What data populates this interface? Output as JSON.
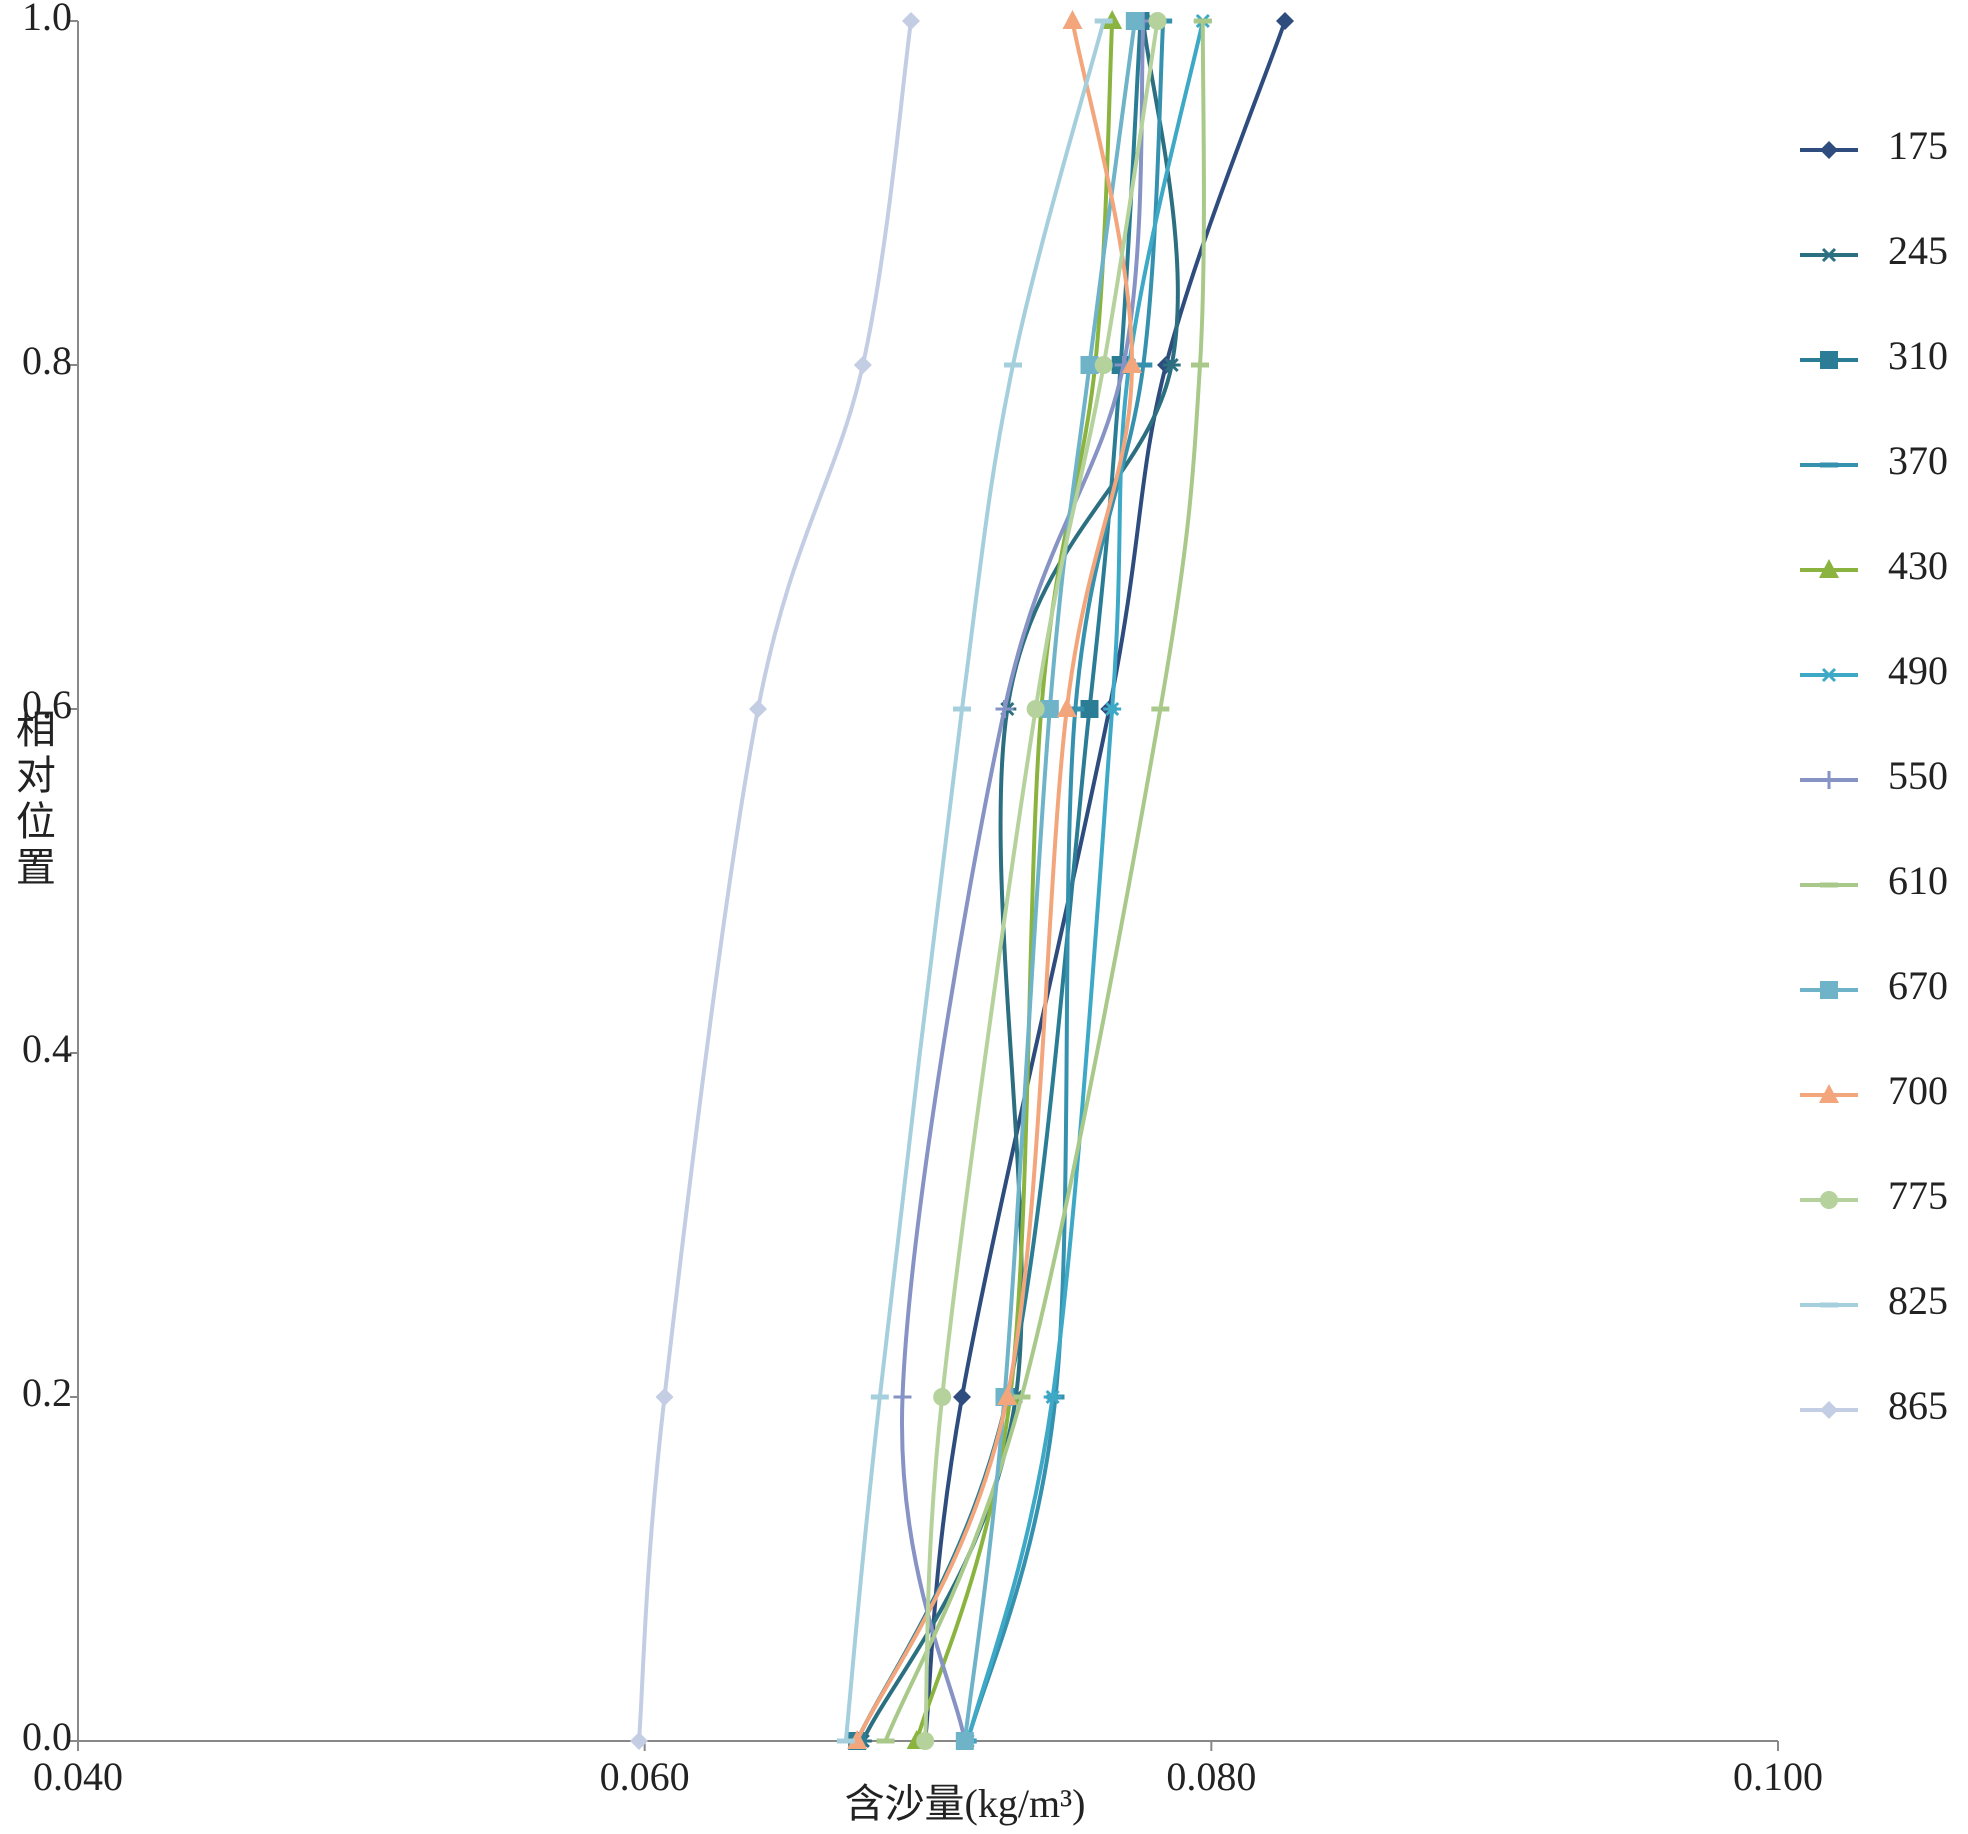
{
  "chart_data": {
    "type": "line",
    "x_label": "含沙量(kg/m³)",
    "y_label": "相对位置",
    "y": [
      0,
      0.2,
      0.6,
      0.8,
      1.0
    ],
    "xlim": [
      0.04,
      0.1
    ],
    "xticks": [
      {
        "value": 0.04,
        "label": "0.040"
      },
      {
        "value": 0.06,
        "label": "0.060"
      },
      {
        "value": 0.08,
        "label": "0.080"
      },
      {
        "value": 0.1,
        "label": "0.100"
      }
    ],
    "ylim": [
      0,
      1
    ],
    "yticks": [
      {
        "value": 0,
        "label": "0.0"
      },
      0.2,
      0.4,
      0.6,
      0.8,
      {
        "value": 1,
        "label": "1.0"
      }
    ],
    "legend": "right",
    "series": [
      {
        "name": "175",
        "color": "#2e4d7e",
        "marker": "diamond",
        "values": [
          0.0699,
          0.0712,
          0.0764,
          0.0784,
          0.0826
        ]
      },
      {
        "name": "245",
        "color": "#2b6f80",
        "marker": "star",
        "values": [
          0.0677,
          0.0731,
          0.0728,
          0.0786,
          0.0776
        ]
      },
      {
        "name": "310",
        "color": "#2a7d95",
        "marker": "square",
        "values": [
          0.0675,
          0.0728,
          0.0757,
          0.0768,
          0.0775
        ]
      },
      {
        "name": "370",
        "color": "#3591ad",
        "marker": "dash",
        "values": [
          0.0714,
          0.0745,
          0.0752,
          0.0776,
          0.0783
        ]
      },
      {
        "name": "430",
        "color": "#8ab43f",
        "marker": "triangle",
        "values": [
          0.0696,
          0.0729,
          0.074,
          0.0759,
          0.0765
        ]
      },
      {
        "name": "490",
        "color": "#3ea9c6",
        "marker": "star",
        "values": [
          0.0714,
          0.0744,
          0.0765,
          0.0771,
          0.0797
        ]
      },
      {
        "name": "550",
        "color": "#8693c4",
        "marker": "plus",
        "values": [
          0.0713,
          0.0691,
          0.0727,
          0.0769,
          0.0776
        ]
      },
      {
        "name": "610",
        "color": "#a9c98a",
        "marker": "dash",
        "values": [
          0.0685,
          0.0733,
          0.0782,
          0.0796,
          0.0797
        ]
      },
      {
        "name": "670",
        "color": "#6fb3c9",
        "marker": "square",
        "values": [
          0.0713,
          0.0727,
          0.0743,
          0.0757,
          0.0773
        ]
      },
      {
        "name": "700",
        "color": "#f3a57c",
        "marker": "triangle",
        "values": [
          0.0675,
          0.0728,
          0.0749,
          0.0772,
          0.0751
        ]
      },
      {
        "name": "775",
        "color": "#b5d29c",
        "marker": "circle",
        "values": [
          0.0699,
          0.0705,
          0.0738,
          0.0762,
          0.0781
        ]
      },
      {
        "name": "825",
        "color": "#a5cfdc",
        "marker": "dash",
        "values": [
          0.0671,
          0.0683,
          0.0712,
          0.073,
          0.0762
        ]
      },
      {
        "name": "865",
        "color": "#c3cde3",
        "marker": "diamond",
        "values": [
          0.0598,
          0.0607,
          0.064,
          0.0677,
          0.0694
        ]
      }
    ]
  }
}
